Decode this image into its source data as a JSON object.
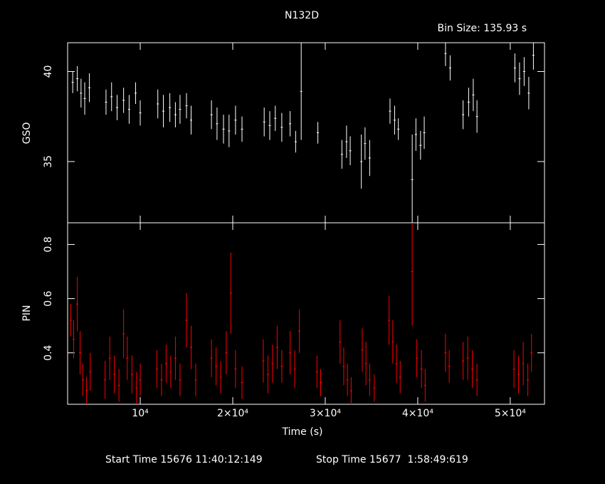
{
  "title": "N132D",
  "bin_size": "Bin Size: 135.93 s",
  "start_time": "Start Time 15676 11:40:12:149",
  "stop_time": "Stop Time 15677  1:58:49:619",
  "chart_data": [
    {
      "type": "scatter",
      "y_label": "GSO",
      "color": "#ffffff",
      "x": [
        2700,
        3200,
        3600,
        4000,
        4500,
        6300,
        6900,
        7500,
        8200,
        8800,
        9500,
        10000,
        11900,
        12500,
        13200,
        13800,
        14300,
        15000,
        15500,
        17700,
        18300,
        19000,
        19600,
        20300,
        21000,
        23400,
        24000,
        24600,
        25300,
        26200,
        26800,
        27400,
        29200,
        31800,
        32300,
        32700,
        33900,
        34300,
        34800,
        37000,
        37500,
        37900,
        39400,
        39800,
        40300,
        40700,
        43000,
        43500,
        44900,
        45500,
        46000,
        46400,
        50500,
        51000,
        51500,
        52000,
        52500
      ],
      "values": [
        39.4,
        39.6,
        38.8,
        38.5,
        39.1,
        38.3,
        38.6,
        38.0,
        38.4,
        37.9,
        38.8,
        37.7,
        38.2,
        37.8,
        38.0,
        37.6,
        37.9,
        38.1,
        37.3,
        37.6,
        37.1,
        36.8,
        36.7,
        37.3,
        36.8,
        37.2,
        37.0,
        37.4,
        36.9,
        37.1,
        36.1,
        38.9,
        36.6,
        35.4,
        36.1,
        35.6,
        35.0,
        36.0,
        35.2,
        37.8,
        37.3,
        36.8,
        34.0,
        36.5,
        35.9,
        36.6,
        41.0,
        40.2,
        37.6,
        38.3,
        38.7,
        37.5,
        40.2,
        39.6,
        40.0,
        38.8,
        40.9
      ],
      "errors": [
        0.6,
        0.7,
        0.8,
        0.9,
        0.8,
        0.7,
        0.8,
        0.7,
        0.7,
        0.8,
        0.6,
        0.7,
        0.8,
        0.9,
        0.8,
        0.7,
        0.8,
        0.7,
        0.8,
        0.8,
        0.9,
        0.8,
        0.9,
        0.8,
        0.7,
        0.8,
        0.8,
        0.7,
        0.8,
        0.7,
        0.6,
        2.7,
        0.6,
        0.8,
        0.9,
        0.8,
        1.5,
        0.9,
        1.0,
        0.7,
        0.8,
        0.6,
        2.5,
        0.9,
        0.8,
        0.9,
        0.7,
        0.7,
        0.8,
        0.8,
        0.9,
        0.9,
        0.8,
        0.9,
        0.8,
        0.9,
        0.8
      ],
      "ylim": [
        31.6,
        41.6
      ],
      "yticks": [
        35,
        40
      ]
    },
    {
      "type": "scatter",
      "y_label": "PIN",
      "x_label": "Time (s)",
      "color": "#ff0000",
      "x": [
        2500,
        2800,
        3200,
        3500,
        3800,
        4200,
        4600,
        6200,
        6700,
        7200,
        7700,
        8200,
        8600,
        9100,
        9600,
        10000,
        11800,
        12300,
        12800,
        13300,
        13800,
        14300,
        15000,
        15500,
        16000,
        17700,
        18200,
        18700,
        19300,
        19800,
        20300,
        21000,
        23300,
        23800,
        24300,
        24800,
        25300,
        26200,
        26700,
        27200,
        29100,
        29500,
        31600,
        32000,
        32400,
        32800,
        34000,
        34400,
        34800,
        35300,
        36900,
        37300,
        37700,
        38100,
        39400,
        39900,
        40400,
        40800,
        43000,
        43400,
        44900,
        45400,
        45900,
        46400,
        50400,
        50900,
        51400,
        51900,
        52300
      ],
      "values": [
        0.52,
        0.45,
        0.58,
        0.4,
        0.3,
        0.26,
        0.33,
        0.3,
        0.38,
        0.32,
        0.28,
        0.47,
        0.38,
        0.32,
        0.27,
        0.3,
        0.34,
        0.3,
        0.36,
        0.33,
        0.38,
        0.3,
        0.52,
        0.42,
        0.3,
        0.38,
        0.35,
        0.31,
        0.4,
        0.62,
        0.34,
        0.29,
        0.37,
        0.32,
        0.36,
        0.42,
        0.35,
        0.4,
        0.34,
        0.48,
        0.33,
        0.29,
        0.44,
        0.35,
        0.3,
        0.26,
        0.41,
        0.36,
        0.3,
        0.27,
        0.52,
        0.44,
        0.36,
        0.31,
        0.7,
        0.38,
        0.34,
        0.28,
        0.4,
        0.35,
        0.37,
        0.38,
        0.34,
        0.3,
        0.34,
        0.32,
        0.36,
        0.3,
        0.4
      ],
      "errors": [
        0.06,
        0.07,
        0.1,
        0.08,
        0.06,
        0.05,
        0.07,
        0.07,
        0.08,
        0.07,
        0.06,
        0.09,
        0.08,
        0.07,
        0.06,
        0.06,
        0.07,
        0.06,
        0.07,
        0.06,
        0.08,
        0.06,
        0.1,
        0.08,
        0.06,
        0.07,
        0.07,
        0.06,
        0.08,
        0.15,
        0.07,
        0.06,
        0.08,
        0.07,
        0.07,
        0.08,
        0.06,
        0.08,
        0.07,
        0.08,
        0.06,
        0.05,
        0.08,
        0.07,
        0.06,
        0.05,
        0.08,
        0.08,
        0.06,
        0.05,
        0.09,
        0.08,
        0.07,
        0.06,
        0.2,
        0.07,
        0.07,
        0.06,
        0.07,
        0.06,
        0.07,
        0.08,
        0.07,
        0.06,
        0.07,
        0.07,
        0.08,
        0.06,
        0.07
      ],
      "ylim": [
        0.21,
        0.88
      ],
      "yticks": [
        0.4,
        0.6,
        0.8
      ],
      "xlim": [
        2150,
        53700
      ],
      "xticks": [
        {
          "value": 10000,
          "label": "10⁴"
        },
        {
          "value": 20000,
          "label": "2×10⁴"
        },
        {
          "value": 30000,
          "label": "3×10⁴"
        },
        {
          "value": 40000,
          "label": "4×10⁴"
        },
        {
          "value": 50000,
          "label": "5×10⁴"
        }
      ]
    }
  ]
}
